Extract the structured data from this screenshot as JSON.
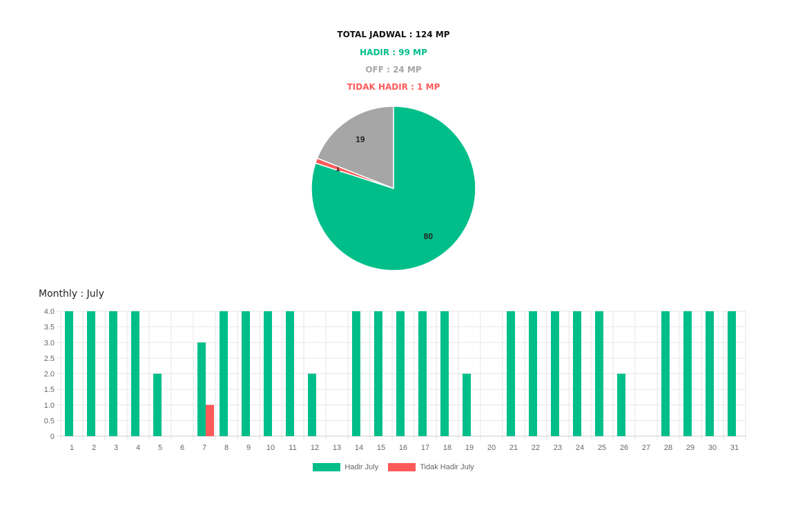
{
  "summary": {
    "total": "TOTAL JADWAL : 124 MP",
    "hadir": "HADIR : 99 MP",
    "off": "OFF : 24 MP",
    "tidak_hadir": "TIDAK HADIR : 1 MP"
  },
  "colors": {
    "total": "#111111",
    "hadir": "#00be8a",
    "off": "#a6a6a6",
    "tidak_hadir": "#ff5a5a",
    "grid": "#e6e6e6",
    "axis_text": "#666666"
  },
  "monthly_title": "Monthly : July",
  "chart_data": [
    {
      "type": "pie",
      "slices": [
        {
          "label": "Hadir",
          "value": 80,
          "color": "#00be8a"
        },
        {
          "label": "Tidak Hadir",
          "value": 1,
          "color": "#ff5a5a"
        },
        {
          "label": "Off",
          "value": 19,
          "color": "#a6a6a6"
        }
      ]
    },
    {
      "type": "bar",
      "categories": [
        "1",
        "2",
        "3",
        "4",
        "5",
        "6",
        "7",
        "8",
        "9",
        "10",
        "11",
        "12",
        "13",
        "14",
        "15",
        "16",
        "17",
        "18",
        "19",
        "20",
        "21",
        "22",
        "23",
        "24",
        "25",
        "26",
        "27",
        "28",
        "29",
        "30",
        "31"
      ],
      "series": [
        {
          "name": "Hadir July",
          "color": "#00be8a",
          "values": [
            4,
            4,
            4,
            4,
            2,
            0,
            3,
            4,
            4,
            4,
            4,
            2,
            0,
            4,
            4,
            4,
            4,
            4,
            2,
            0,
            4,
            4,
            4,
            4,
            4,
            2,
            0,
            4,
            4,
            4,
            4
          ]
        },
        {
          "name": "Tidak Hadir July",
          "color": "#ff5a5a",
          "values": [
            0,
            0,
            0,
            0,
            0,
            0,
            1,
            0,
            0,
            0,
            0,
            0,
            0,
            0,
            0,
            0,
            0,
            0,
            0,
            0,
            0,
            0,
            0,
            0,
            0,
            0,
            0,
            0,
            0,
            0,
            0
          ]
        }
      ],
      "yticks": [
        "0",
        "0.5",
        "1.0",
        "1.5",
        "2.0",
        "2.5",
        "3.0",
        "3.5",
        "4.0"
      ],
      "ylim": [
        0,
        4
      ],
      "grid": true,
      "legend": "bottom-center"
    }
  ]
}
